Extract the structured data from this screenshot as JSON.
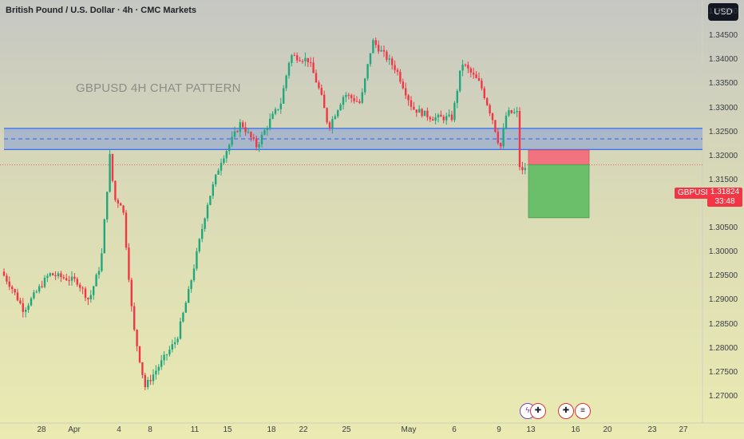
{
  "header": {
    "title": "British Pound / U.S. Dollar · 4h · CMC Markets",
    "currency": "USD"
  },
  "annotation": {
    "watermark": "GBPUSD 4H CHAT PATTERN"
  },
  "price_tag": {
    "symbol": "GBPUSD",
    "price": "1.31824",
    "countdown": "33:48"
  },
  "event_icons": [
    {
      "name": "flash-icon",
      "glyph": "ϟ"
    },
    {
      "name": "uk-flag-icon",
      "glyph": "✚"
    },
    {
      "name": "uk-flag-icon",
      "glyph": "✚"
    },
    {
      "name": "us-flag-icon",
      "glyph": "≡"
    }
  ],
  "colors": {
    "up": "#22a77d",
    "down": "#f23645",
    "zone_line": "#2962ff",
    "stop_fill": "#f0737f",
    "target_fill": "#6bbf6b"
  },
  "chart_data": {
    "type": "candlestick",
    "title": "British Pound / U.S. Dollar · 4h · CMC Markets",
    "ylim": [
      1.2695,
      1.3575
    ],
    "y_ticks": [
      "1.35000",
      "1.34500",
      "1.34000",
      "1.33500",
      "1.33000",
      "1.32500",
      "1.32000",
      "1.31500",
      "1.31000",
      "1.30500",
      "1.30000",
      "1.29500",
      "1.29000",
      "1.28500",
      "1.28000",
      "1.27500",
      "1.27000"
    ],
    "x_ticks": [
      "28",
      "Apr",
      "4",
      "8",
      "11",
      "15",
      "18",
      "22",
      "25",
      "May",
      "6",
      "9",
      "13",
      "16",
      "20",
      "23",
      "27"
    ],
    "grid": false,
    "key_points": [
      {
        "t": 0,
        "p": 1.296
      },
      {
        "t": 12,
        "p": 1.293
      },
      {
        "t": 28,
        "p": 1.288
      },
      {
        "t": 60,
        "p": 1.2955
      },
      {
        "t": 95,
        "p": 1.294
      },
      {
        "t": 110,
        "p": 1.29
      },
      {
        "t": 125,
        "p": 1.298
      },
      {
        "t": 136,
        "p": 1.32
      },
      {
        "t": 142,
        "p": 1.311
      },
      {
        "t": 152,
        "p": 1.31
      },
      {
        "t": 165,
        "p": 1.285
      },
      {
        "t": 180,
        "p": 1.272
      },
      {
        "t": 200,
        "p": 1.277
      },
      {
        "t": 220,
        "p": 1.282
      },
      {
        "t": 235,
        "p": 1.292
      },
      {
        "t": 258,
        "p": 1.31
      },
      {
        "t": 275,
        "p": 1.319
      },
      {
        "t": 300,
        "p": 1.327
      },
      {
        "t": 320,
        "p": 1.322
      },
      {
        "t": 335,
        "p": 1.327
      },
      {
        "t": 350,
        "p": 1.331
      },
      {
        "t": 362,
        "p": 1.341
      },
      {
        "t": 385,
        "p": 1.34
      },
      {
        "t": 400,
        "p": 1.333
      },
      {
        "t": 410,
        "p": 1.326
      },
      {
        "t": 430,
        "p": 1.333
      },
      {
        "t": 450,
        "p": 1.331
      },
      {
        "t": 465,
        "p": 1.344
      },
      {
        "t": 480,
        "p": 1.341
      },
      {
        "t": 495,
        "p": 1.338
      },
      {
        "t": 515,
        "p": 1.33
      },
      {
        "t": 540,
        "p": 1.328
      },
      {
        "t": 565,
        "p": 1.328
      },
      {
        "t": 577,
        "p": 1.3395
      },
      {
        "t": 600,
        "p": 1.335
      },
      {
        "t": 615,
        "p": 1.328
      },
      {
        "t": 625,
        "p": 1.3215
      },
      {
        "t": 633,
        "p": 1.329
      },
      {
        "t": 646,
        "p": 1.329
      },
      {
        "t": 650,
        "p": 1.316
      },
      {
        "t": 658,
        "p": 1.3182
      }
    ],
    "resistance_zone": {
      "top": 1.3258,
      "bottom": 1.3214,
      "mid": 1.3236
    },
    "current_price": 1.31824,
    "short_position": {
      "entry": 1.31824,
      "stop": 1.3213,
      "target": 1.3072
    }
  }
}
